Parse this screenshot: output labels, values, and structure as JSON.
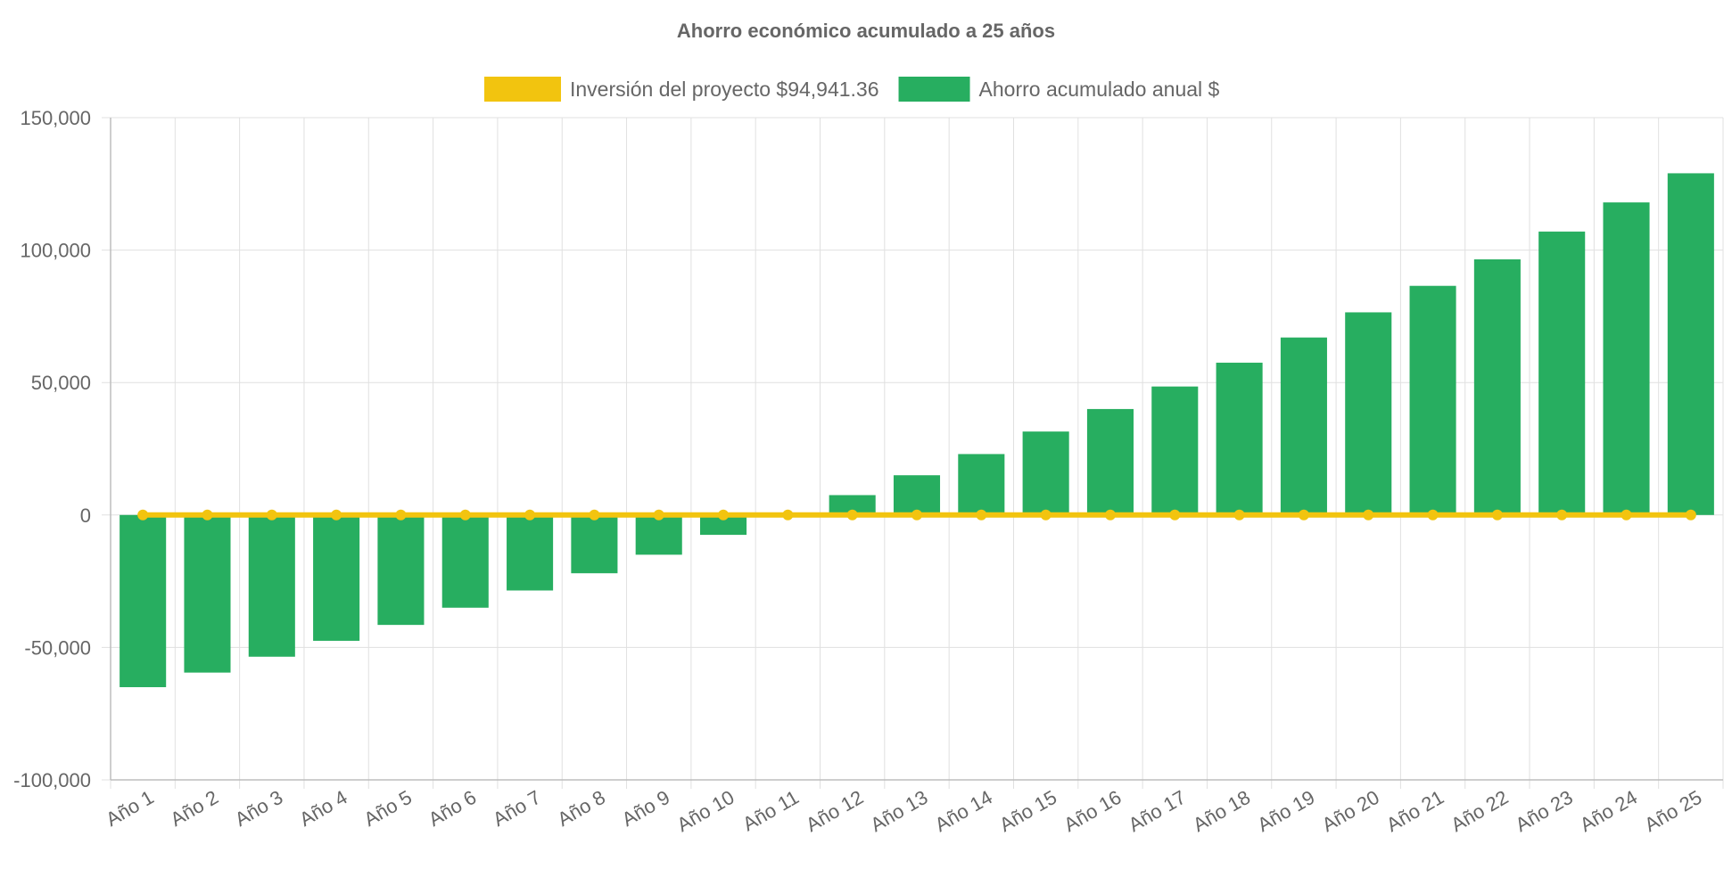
{
  "chart_data": {
    "type": "bar",
    "title": "Ahorro económico acumulado a 25 años",
    "xlabel": "",
    "ylabel": "",
    "ylim": [
      -100000,
      150000
    ],
    "yticks": [
      -100000,
      -50000,
      0,
      50000,
      100000,
      150000
    ],
    "ytick_labels": [
      "-100,000",
      "-50,000",
      "0",
      "50,000",
      "100,000",
      "150,000"
    ],
    "grid": true,
    "legend_position": "top",
    "categories": [
      "Año 1",
      "Año 2",
      "Año 3",
      "Año 4",
      "Año 5",
      "Año 6",
      "Año 7",
      "Año 8",
      "Año 9",
      "Año 10",
      "Año 11",
      "Año 12",
      "Año 13",
      "Año 14",
      "Año 15",
      "Año 16",
      "Año 17",
      "Año 18",
      "Año 19",
      "Año 20",
      "Año 21",
      "Año 22",
      "Año 23",
      "Año 24",
      "Año 25"
    ],
    "series": [
      {
        "name": "Inversión del proyecto $94,941.36",
        "type": "line",
        "color": "#f2c40f",
        "values": [
          0,
          0,
          0,
          0,
          0,
          0,
          0,
          0,
          0,
          0,
          0,
          0,
          0,
          0,
          0,
          0,
          0,
          0,
          0,
          0,
          0,
          0,
          0,
          0,
          0
        ]
      },
      {
        "name": "Ahorro acumulado anual $",
        "type": "bar",
        "color": "#27ae60",
        "values": [
          -65000,
          -59500,
          -53500,
          -47500,
          -41500,
          -35000,
          -28500,
          -22000,
          -15000,
          -7500,
          0,
          7500,
          15000,
          23000,
          31500,
          40000,
          48500,
          57500,
          67000,
          76500,
          86500,
          96500,
          107000,
          118000,
          129000
        ]
      }
    ]
  }
}
